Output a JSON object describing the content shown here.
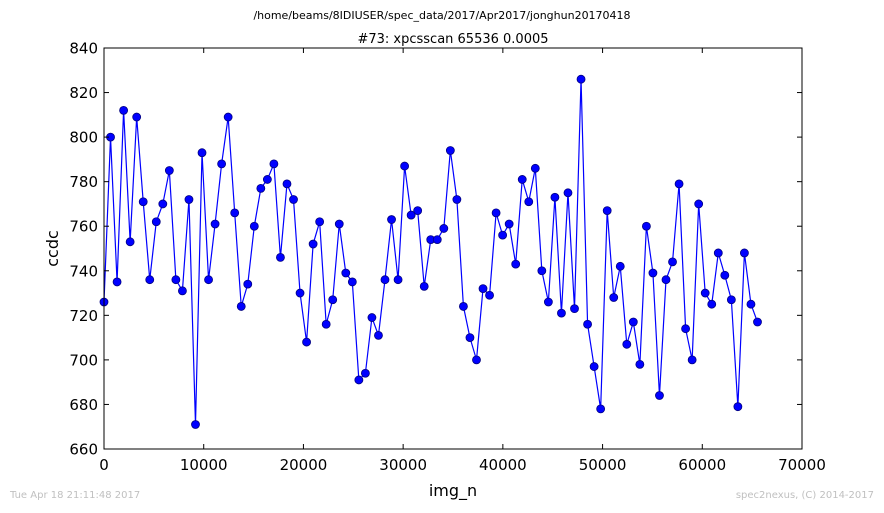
{
  "header": {
    "path": "/home/beams/8IDIUSER/spec_data/2017/Apr2017/jonghun20170418",
    "scan_title": "#73: xpcsscan 65536 0.0005"
  },
  "footer": {
    "timestamp": "Tue Apr 18 21:11:48 2017",
    "credit": "spec2nexus, (C) 2014-2017"
  },
  "colors": {
    "line": "#0000ff",
    "marker_fill": "#0000ff",
    "marker_edge": "#000080",
    "axes": "#000000",
    "footer_text": "#c0c0c0",
    "background": "#ffffff"
  },
  "chart_data": {
    "type": "line",
    "title": "#73: xpcsscan 65536 0.0005",
    "xlabel": "img_n",
    "ylabel": "ccdc",
    "xlim": [
      0,
      70000
    ],
    "ylim": [
      660,
      840
    ],
    "x_ticks": [
      0,
      10000,
      20000,
      30000,
      40000,
      50000,
      60000,
      70000
    ],
    "x_tick_labels": [
      "0",
      "10000",
      "20000",
      "30000",
      "40000",
      "50000",
      "60000",
      "70000"
    ],
    "y_ticks": [
      660,
      680,
      700,
      720,
      740,
      760,
      780,
      800,
      820,
      840
    ],
    "y_tick_labels": [
      "660",
      "680",
      "700",
      "720",
      "740",
      "760",
      "780",
      "800",
      "820",
      "840"
    ],
    "grid": false,
    "legend": "none",
    "series": [
      {
        "x": [
          0,
          655,
          1311,
          1966,
          2621,
          3277,
          3932,
          4588,
          5243,
          5898,
          6554,
          7209,
          7864,
          8520,
          9175,
          9830,
          10486,
          11141,
          11796,
          12452,
          13107,
          13763,
          14418,
          15073,
          15729,
          16384,
          17039,
          17695,
          18350,
          19005,
          19661,
          20316,
          20972,
          21627,
          22282,
          22938,
          23593,
          24248,
          24904,
          25559,
          26214,
          26870,
          27525,
          28180,
          28836,
          29491,
          30147,
          30802,
          31457,
          32113,
          32768,
          33423,
          34079,
          34734,
          35389,
          36045,
          36700,
          37356,
          38011,
          38666,
          39322,
          39977,
          40632,
          41288,
          41943,
          42598,
          43254,
          43909,
          44565,
          45220,
          45875,
          46531,
          47186,
          47841,
          48497,
          49152,
          49807,
          50463,
          51118,
          51774,
          52429,
          53084,
          53740,
          54395,
          55050,
          55706,
          56361,
          57016,
          57672,
          58327,
          58983,
          59638,
          60293,
          60949,
          61604,
          62259,
          62915,
          63570,
          64225,
          64881,
          65536
        ],
        "y": [
          726,
          800,
          735,
          812,
          753,
          809,
          771,
          736,
          762,
          770,
          785,
          736,
          731,
          772,
          671,
          793,
          736,
          761,
          788,
          809,
          766,
          724,
          734,
          760,
          777,
          781,
          788,
          746,
          779,
          772,
          730,
          708,
          752,
          762,
          716,
          727,
          761,
          739,
          735,
          691,
          694,
          719,
          711,
          736,
          763,
          736,
          787,
          765,
          767,
          733,
          754,
          754,
          759,
          794,
          772,
          724,
          710,
          700,
          732,
          729,
          766,
          756,
          761,
          743,
          781,
          771,
          786,
          740,
          726,
          773,
          721,
          775,
          723,
          826,
          716,
          697,
          678,
          767,
          728,
          742,
          707,
          717,
          698,
          760,
          739,
          684,
          736,
          744,
          779,
          714,
          700,
          770,
          730,
          725,
          748,
          738,
          727,
          679,
          748,
          725,
          717
        ]
      }
    ]
  }
}
